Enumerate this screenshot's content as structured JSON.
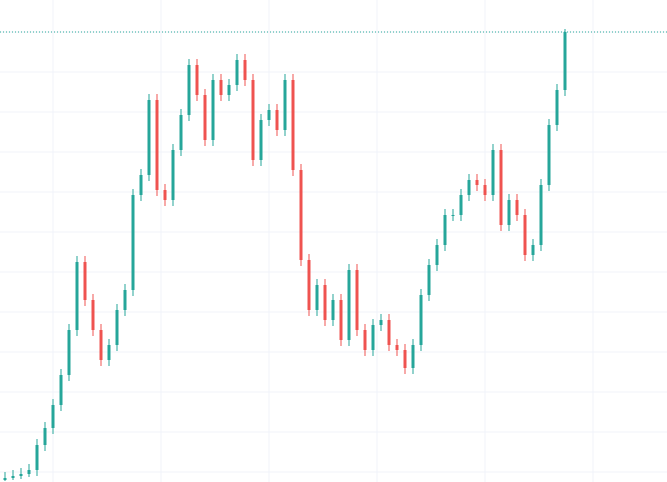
{
  "chart_data": {
    "type": "candlestick",
    "open": [
      2,
      4,
      6,
      8,
      12,
      37,
      54,
      77,
      107,
      152,
      220,
      182,
      152,
      122,
      137,
      172,
      192,
      287,
      307,
      382,
      292,
      282,
      332,
      367,
      417,
      387,
      342,
      402,
      387,
      397,
      422,
      402,
      322,
      362,
      372,
      352,
      402,
      312,
      222,
      172,
      197,
      162,
      182,
      142,
      212,
      152,
      132,
      157,
      162,
      137,
      132,
      114,
      137,
      187,
      217,
      237,
      267,
      267,
      287,
      302,
      297,
      287,
      332,
      257,
      282,
      267,
      227,
      237,
      297,
      357,
      392
    ],
    "high": [
      10,
      12,
      14,
      18,
      43,
      60,
      83,
      113,
      158,
      226,
      226,
      188,
      158,
      143,
      178,
      198,
      293,
      313,
      388,
      388,
      298,
      338,
      373,
      423,
      423,
      393,
      408,
      408,
      403,
      428,
      428,
      408,
      368,
      378,
      378,
      408,
      408,
      318,
      228,
      203,
      203,
      188,
      188,
      218,
      218,
      158,
      163,
      168,
      168,
      143,
      138,
      143,
      193,
      223,
      243,
      273,
      273,
      293,
      308,
      308,
      303,
      338,
      338,
      288,
      288,
      273,
      243,
      303,
      363,
      398,
      453
    ],
    "low": [
      1,
      2,
      3,
      5,
      6,
      31,
      48,
      71,
      101,
      146,
      176,
      146,
      116,
      116,
      131,
      166,
      186,
      281,
      301,
      286,
      276,
      276,
      326,
      361,
      381,
      336,
      336,
      381,
      381,
      391,
      396,
      316,
      316,
      356,
      346,
      346,
      306,
      216,
      166,
      166,
      156,
      156,
      136,
      136,
      146,
      126,
      126,
      151,
      131,
      126,
      108,
      108,
      131,
      181,
      211,
      231,
      261,
      261,
      281,
      291,
      281,
      281,
      251,
      251,
      261,
      221,
      221,
      231,
      291,
      351,
      386
    ],
    "close": [
      4,
      6,
      8,
      12,
      37,
      54,
      77,
      107,
      152,
      220,
      182,
      152,
      122,
      137,
      172,
      192,
      287,
      307,
      382,
      292,
      282,
      332,
      367,
      417,
      387,
      342,
      402,
      387,
      397,
      422,
      402,
      322,
      362,
      372,
      352,
      402,
      312,
      222,
      172,
      197,
      162,
      182,
      142,
      212,
      152,
      132,
      157,
      162,
      137,
      132,
      114,
      137,
      187,
      217,
      237,
      267,
      267,
      287,
      302,
      297,
      287,
      332,
      257,
      282,
      267,
      227,
      237,
      297,
      357,
      392,
      450
    ],
    "up_color": "#26a69a",
    "down_color": "#ef5350",
    "xlim": [
      -0.625,
      82.75
    ],
    "xticks": [
      6,
      19.5,
      33,
      46.5,
      60,
      73.5
    ],
    "ylim": [
      0,
      482
    ],
    "yticks": [
      10,
      50,
      90,
      130,
      170,
      210,
      250,
      290,
      330,
      370,
      410,
      450
    ],
    "grid": true,
    "last_price_line": true
  }
}
